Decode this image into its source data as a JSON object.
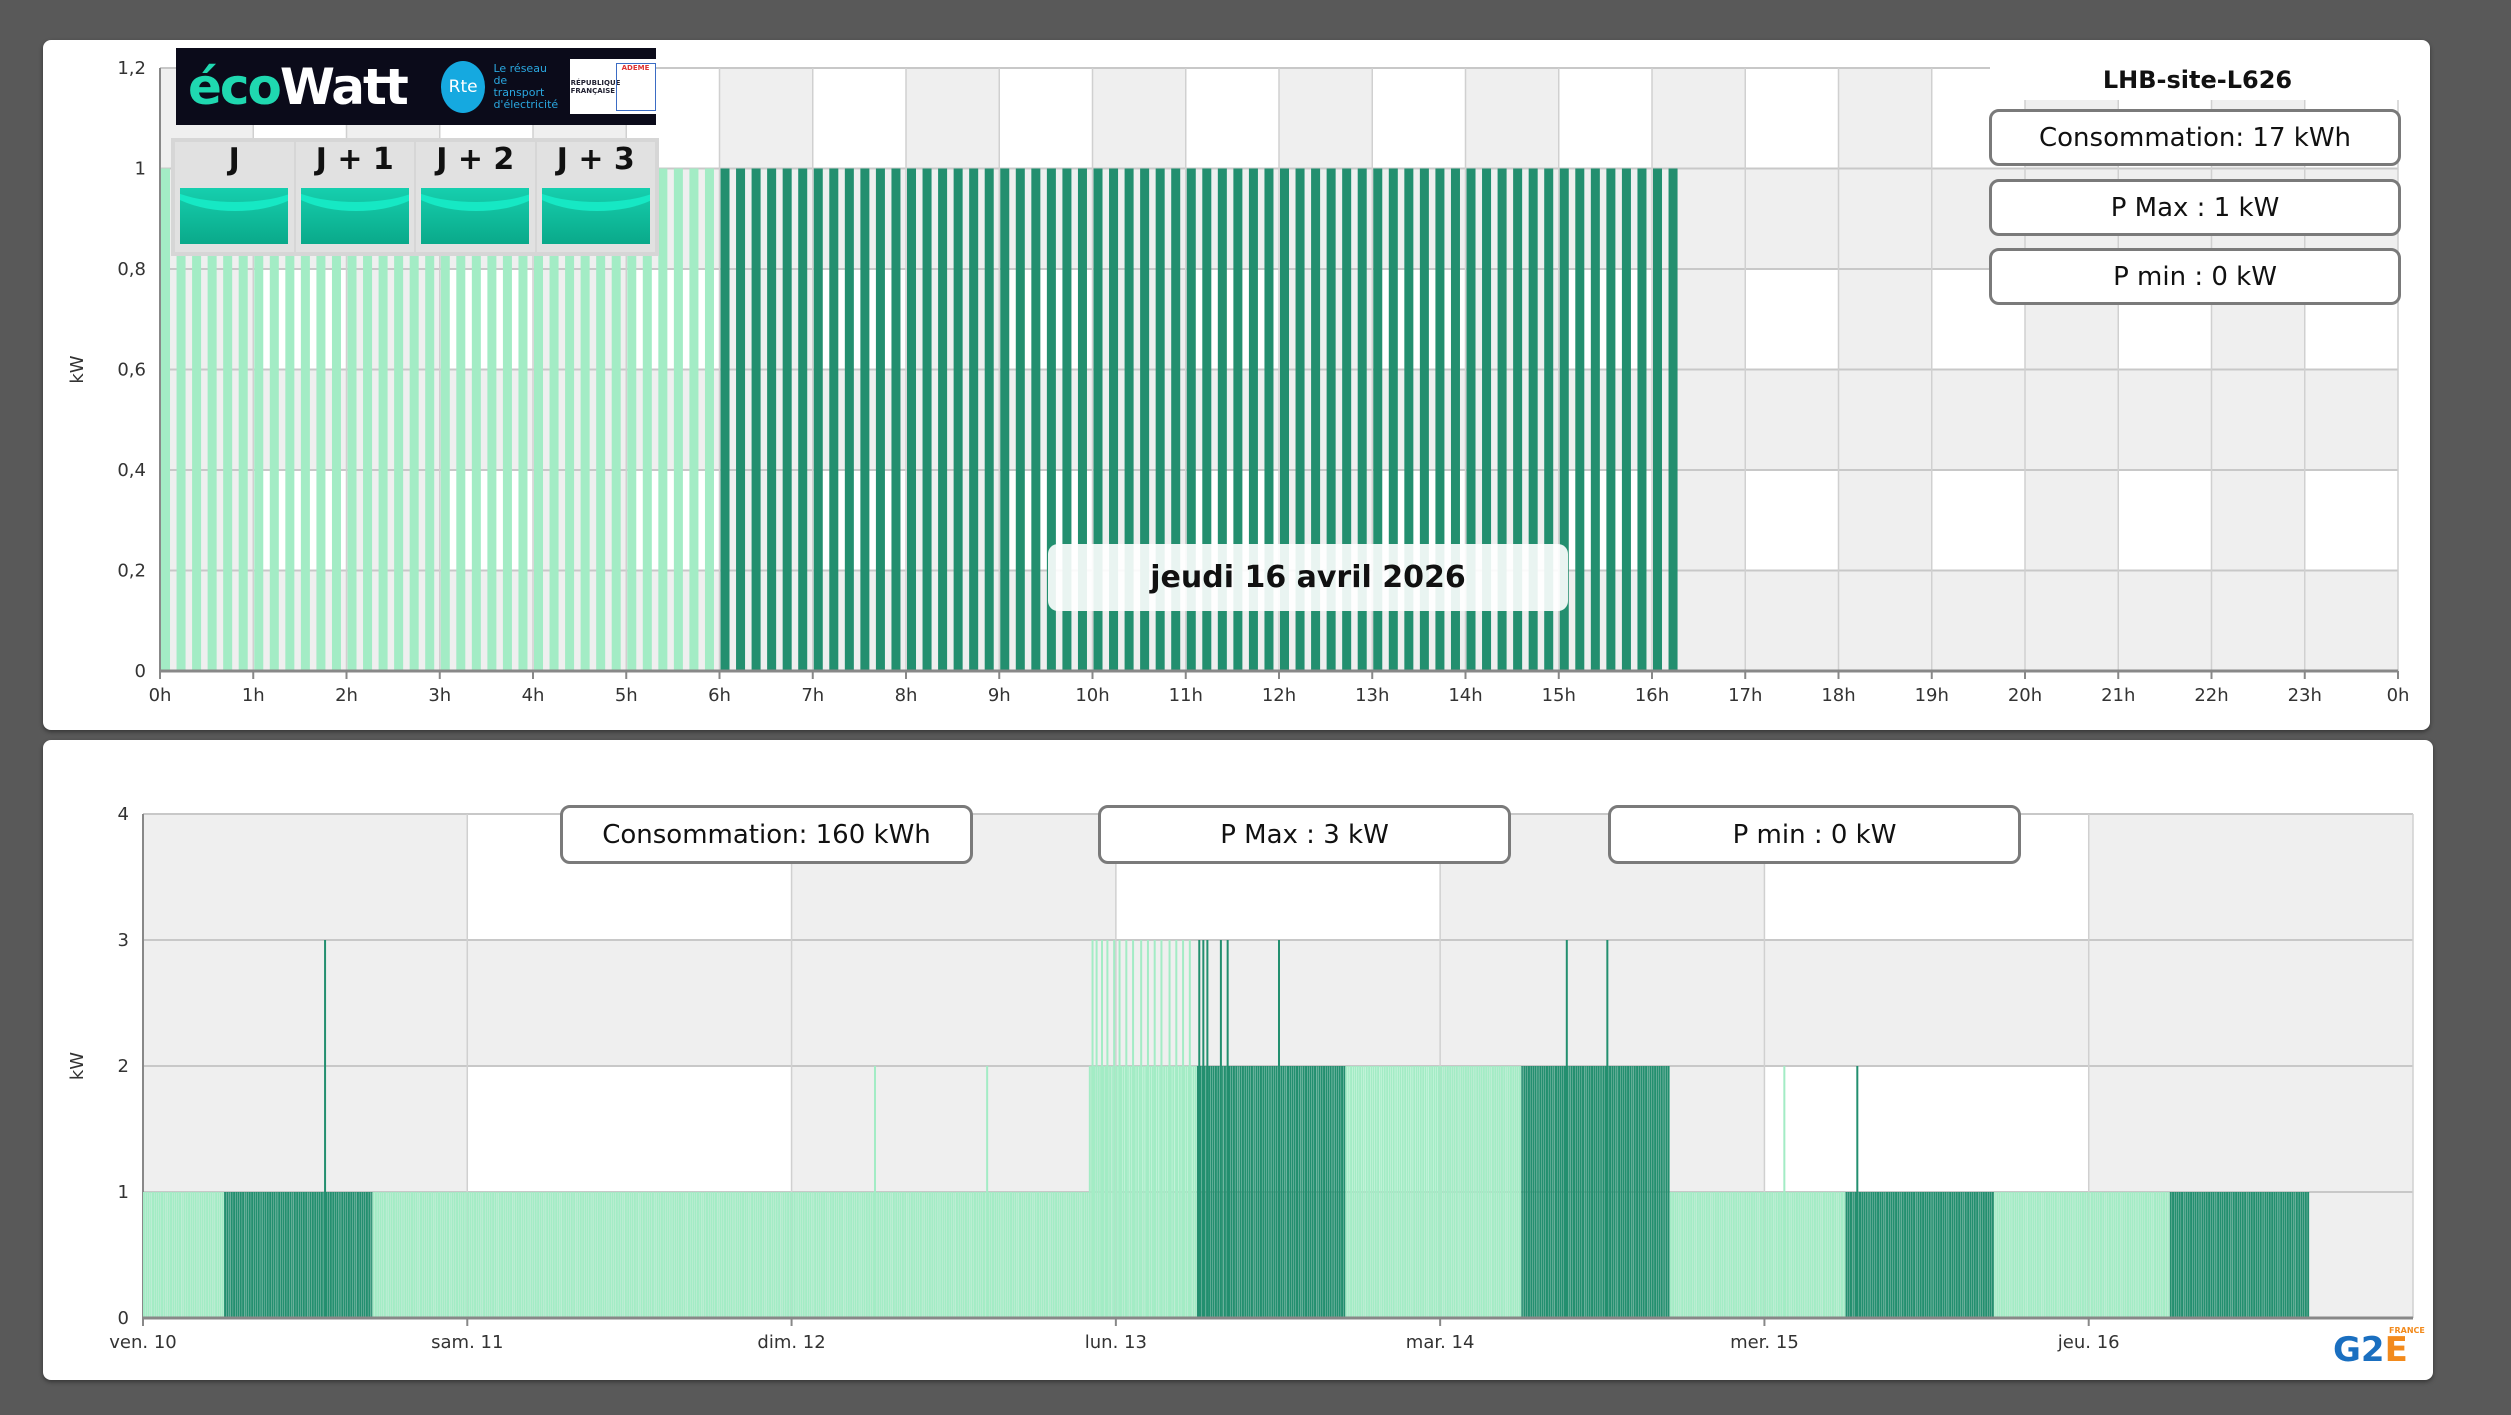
{
  "top": {
    "site_title": "LHB-site-L626",
    "consumption": "Consommation: 17 kWh",
    "p_max": "P Max :  1 kW",
    "p_min": "P min : 0 kW",
    "date_label": "jeudi 16 avril 2026",
    "ecowatt": {
      "logo_text_eco": "éco",
      "logo_text_watt": "Watt",
      "rte_logo": "Rte",
      "rte_text": "Le réseau de transport d'électricité",
      "gov_text": "RÉPUBLIQUE FRANÇAISE",
      "ademe_text": "ADEME",
      "days": [
        {
          "label": "J",
          "color": "#16cfae"
        },
        {
          "label": "J + 1",
          "color": "#16cfae"
        },
        {
          "label": "J + 2",
          "color": "#16cfae"
        },
        {
          "label": "J + 3",
          "color": "#16cfae"
        }
      ]
    }
  },
  "bottom": {
    "consumption": "Consommation: 160 kWh",
    "p_max": "P Max :  3 kW",
    "p_min": "P min : 0 kW",
    "logo": "G2E FRANCE"
  },
  "colors": {
    "light": "#a3ecc5",
    "dark": "#238f6f",
    "grid_band": "#efefef",
    "background": "#595959"
  },
  "chart_data": [
    {
      "type": "bar",
      "ylabel": "kW",
      "ylim": [
        0,
        1.2
      ],
      "yticks": [
        "0",
        "0,2",
        "0,4",
        "0,6",
        "0,8",
        "1",
        "1,2"
      ],
      "xticks": [
        "0h",
        "1h",
        "2h",
        "3h",
        "4h",
        "5h",
        "6h",
        "7h",
        "8h",
        "9h",
        "10h",
        "11h",
        "12h",
        "13h",
        "14h",
        "15h",
        "16h",
        "17h",
        "18h",
        "19h",
        "20h",
        "21h",
        "22h",
        "23h",
        "0h"
      ],
      "interval_minutes": 10,
      "grid": true,
      "segments": [
        {
          "start_hour": 0,
          "end_hour": 6,
          "value": 1,
          "color": "#a3ecc5"
        },
        {
          "start_hour": 6,
          "end_hour": 16.17,
          "value": 1,
          "color": "#238f6f"
        }
      ]
    },
    {
      "type": "bar",
      "ylabel": "kW",
      "ylim": [
        0,
        4
      ],
      "yticks": [
        "0",
        "1",
        "2",
        "3",
        "4"
      ],
      "xticks": [
        "ven. 10",
        "sam. 11",
        "dim. 12",
        "lun. 13",
        "mar. 14",
        "mer. 15",
        "jeu. 16"
      ],
      "interval_minutes": 10,
      "grid": true,
      "segments_hours_from_ven_10": [
        {
          "start": 0,
          "end": 6,
          "value": 1,
          "color": "#a3ecc5"
        },
        {
          "start": 6,
          "end": 17,
          "value": 1,
          "color": "#238f6f"
        },
        {
          "start": 17,
          "end": 70,
          "value": 1,
          "color": "#a3ecc5"
        },
        {
          "start": 70,
          "end": 78,
          "value": 2,
          "color": "#a3ecc5"
        },
        {
          "start": 78,
          "end": 89,
          "value": 2,
          "color": "#238f6f"
        },
        {
          "start": 89,
          "end": 102,
          "value": 2,
          "color": "#a3ecc5"
        },
        {
          "start": 102,
          "end": 113,
          "value": 2,
          "color": "#238f6f"
        },
        {
          "start": 113,
          "end": 126,
          "value": 1,
          "color": "#a3ecc5"
        },
        {
          "start": 126,
          "end": 137,
          "value": 1,
          "color": "#238f6f"
        },
        {
          "start": 137,
          "end": 150,
          "value": 1,
          "color": "#a3ecc5"
        },
        {
          "start": 150,
          "end": 160.3,
          "value": 1,
          "color": "#238f6f"
        }
      ],
      "spikes_hours_from_ven_10": [
        {
          "hour": 13.4,
          "value": 3,
          "color": "#238f6f"
        },
        {
          "hour": 54.1,
          "value": 2,
          "color": "#a3ecc5"
        },
        {
          "hour": 62.4,
          "value": 2,
          "color": "#a3ecc5"
        },
        {
          "hour": 70.2,
          "value": 3,
          "color": "#a3ecc5"
        },
        {
          "hour": 70.5,
          "value": 3,
          "color": "#a3ecc5"
        },
        {
          "hour": 70.9,
          "value": 3,
          "color": "#a3ecc5"
        },
        {
          "hour": 71.3,
          "value": 3,
          "color": "#a3ecc5"
        },
        {
          "hour": 71.8,
          "value": 3,
          "color": "#a3ecc5"
        },
        {
          "hour": 72.2,
          "value": 3,
          "color": "#a3ecc5"
        },
        {
          "hour": 72.7,
          "value": 3,
          "color": "#a3ecc5"
        },
        {
          "hour": 73.2,
          "value": 3,
          "color": "#a3ecc5"
        },
        {
          "hour": 73.8,
          "value": 3,
          "color": "#a3ecc5"
        },
        {
          "hour": 74.3,
          "value": 3,
          "color": "#a3ecc5"
        },
        {
          "hour": 74.8,
          "value": 3,
          "color": "#a3ecc5"
        },
        {
          "hour": 75.3,
          "value": 3,
          "color": "#a3ecc5"
        },
        {
          "hour": 75.9,
          "value": 3,
          "color": "#a3ecc5"
        },
        {
          "hour": 76.4,
          "value": 3,
          "color": "#a3ecc5"
        },
        {
          "hour": 76.9,
          "value": 3,
          "color": "#a3ecc5"
        },
        {
          "hour": 77.4,
          "value": 3,
          "color": "#a3ecc5"
        },
        {
          "hour": 78.1,
          "value": 3,
          "color": "#238f6f"
        },
        {
          "hour": 78.4,
          "value": 3,
          "color": "#238f6f"
        },
        {
          "hour": 78.7,
          "value": 3,
          "color": "#238f6f"
        },
        {
          "hour": 79.7,
          "value": 3,
          "color": "#238f6f"
        },
        {
          "hour": 80.2,
          "value": 3,
          "color": "#238f6f"
        },
        {
          "hour": 84.0,
          "value": 3,
          "color": "#238f6f"
        },
        {
          "hour": 105.3,
          "value": 3,
          "color": "#238f6f"
        },
        {
          "hour": 108.3,
          "value": 3,
          "color": "#238f6f"
        },
        {
          "hour": 121.4,
          "value": 2,
          "color": "#a3ecc5"
        },
        {
          "hour": 126.8,
          "value": 2,
          "color": "#238f6f"
        }
      ]
    }
  ]
}
